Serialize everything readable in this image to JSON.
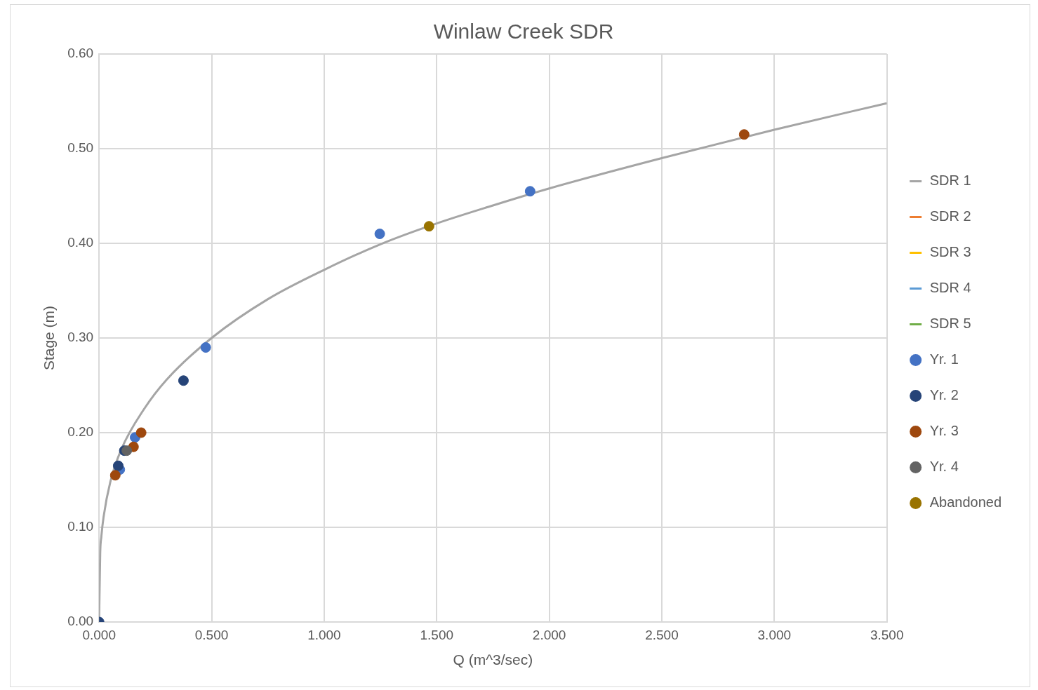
{
  "chart_data": {
    "type": "scatter",
    "title": "Winlaw Creek SDR",
    "xlabel": "Q (m^3/sec)",
    "ylabel": "Stage (m)",
    "xlim": [
      0,
      3.5
    ],
    "xticks": [
      {
        "value": 0,
        "label": "0.000"
      },
      {
        "value": 0.5,
        "label": "0.500"
      },
      {
        "value": 1,
        "label": "1.000"
      },
      {
        "value": 1.5,
        "label": "1.500"
      },
      {
        "value": 2,
        "label": "2.000"
      },
      {
        "value": 2.5,
        "label": "2.500"
      },
      {
        "value": 3,
        "label": "3.000"
      },
      {
        "value": 3.5,
        "label": "3.500"
      }
    ],
    "ylim": [
      0,
      0.6
    ],
    "yticks": [
      {
        "value": 0,
        "label": "0.00"
      },
      {
        "value": 0.1,
        "label": "0.10"
      },
      {
        "value": 0.2,
        "label": "0.20"
      },
      {
        "value": 0.3,
        "label": "0.30"
      },
      {
        "value": 0.4,
        "label": "0.40"
      },
      {
        "value": 0.5,
        "label": "0.50"
      },
      {
        "value": 0.6,
        "label": "0.60"
      }
    ],
    "grid": true,
    "legend": "right",
    "marker": "circle",
    "series": [
      {
        "name": "SDR 1",
        "type": "line",
        "marker": "none",
        "color": "#a5a5a5",
        "x": [
          0,
          0.005,
          0.01,
          0.02,
          0.05,
          0.1,
          0.2,
          0.3,
          0.5,
          0.75,
          1,
          1.25,
          1.5,
          1.75,
          2,
          2.5,
          3,
          3.5
        ],
        "values": [
          0,
          0.073,
          0.09,
          0.111,
          0.148,
          0.183,
          0.225,
          0.256,
          0.3,
          0.341,
          0.372,
          0.399,
          0.421,
          0.44,
          0.458,
          0.49,
          0.52,
          0.548
        ]
      },
      {
        "name": "SDR 2",
        "type": "line",
        "marker": "none",
        "color": "#ed7d31"
      },
      {
        "name": "SDR 3",
        "type": "line",
        "marker": "none",
        "color": "#ffc000"
      },
      {
        "name": "SDR 4",
        "type": "line",
        "marker": "none",
        "color": "#5b9bd5"
      },
      {
        "name": "SDR 5",
        "type": "line",
        "marker": "none",
        "color": "#70ad47"
      },
      {
        "name": "Yr. 1",
        "color": "#4472c4",
        "x": [
          0.092,
          0.16,
          0.474,
          1.247,
          1.915
        ],
        "values": [
          0.161,
          0.195,
          0.29,
          0.41,
          0.455
        ]
      },
      {
        "name": "Yr. 2",
        "color": "#264478",
        "x": [
          0,
          0.085,
          0.112,
          0.375
        ],
        "values": [
          0,
          0.165,
          0.181,
          0.255
        ]
      },
      {
        "name": "Yr. 3",
        "color": "#9e480e",
        "x": [
          0.072,
          0.153,
          0.187,
          2.866
        ],
        "values": [
          0.155,
          0.185,
          0.2,
          0.515
        ]
      },
      {
        "name": "Yr. 4",
        "color": "#636363",
        "x": [
          0.123
        ],
        "values": [
          0.181
        ]
      },
      {
        "name": "Abandoned",
        "color": "#997300",
        "x": [
          1.466
        ],
        "values": [
          0.418
        ]
      }
    ]
  }
}
